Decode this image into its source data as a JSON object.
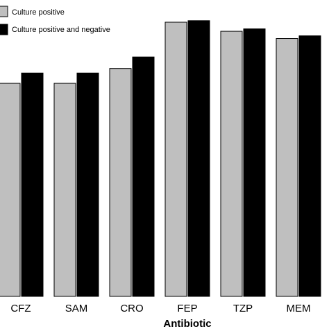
{
  "chart_data": {
    "type": "bar",
    "xlabel": "Antibiotic",
    "ylabel": "",
    "categories": [
      "CFZ",
      "SAM",
      "CRO",
      "FEP",
      "TZP",
      "MEM"
    ],
    "series": [
      {
        "name": "Culture positive",
        "color": "#bfbfbf",
        "values": [
          70.4,
          70.4,
          75.3,
          90.6,
          87.6,
          85.2
        ]
      },
      {
        "name": "Culture positive and negative",
        "color": "#000000",
        "values": [
          73.8,
          73.8,
          79.1,
          91.1,
          88.4,
          86.1
        ]
      }
    ],
    "ylim": [
      0,
      100
    ],
    "grid": false,
    "legend_position": "top-left"
  }
}
